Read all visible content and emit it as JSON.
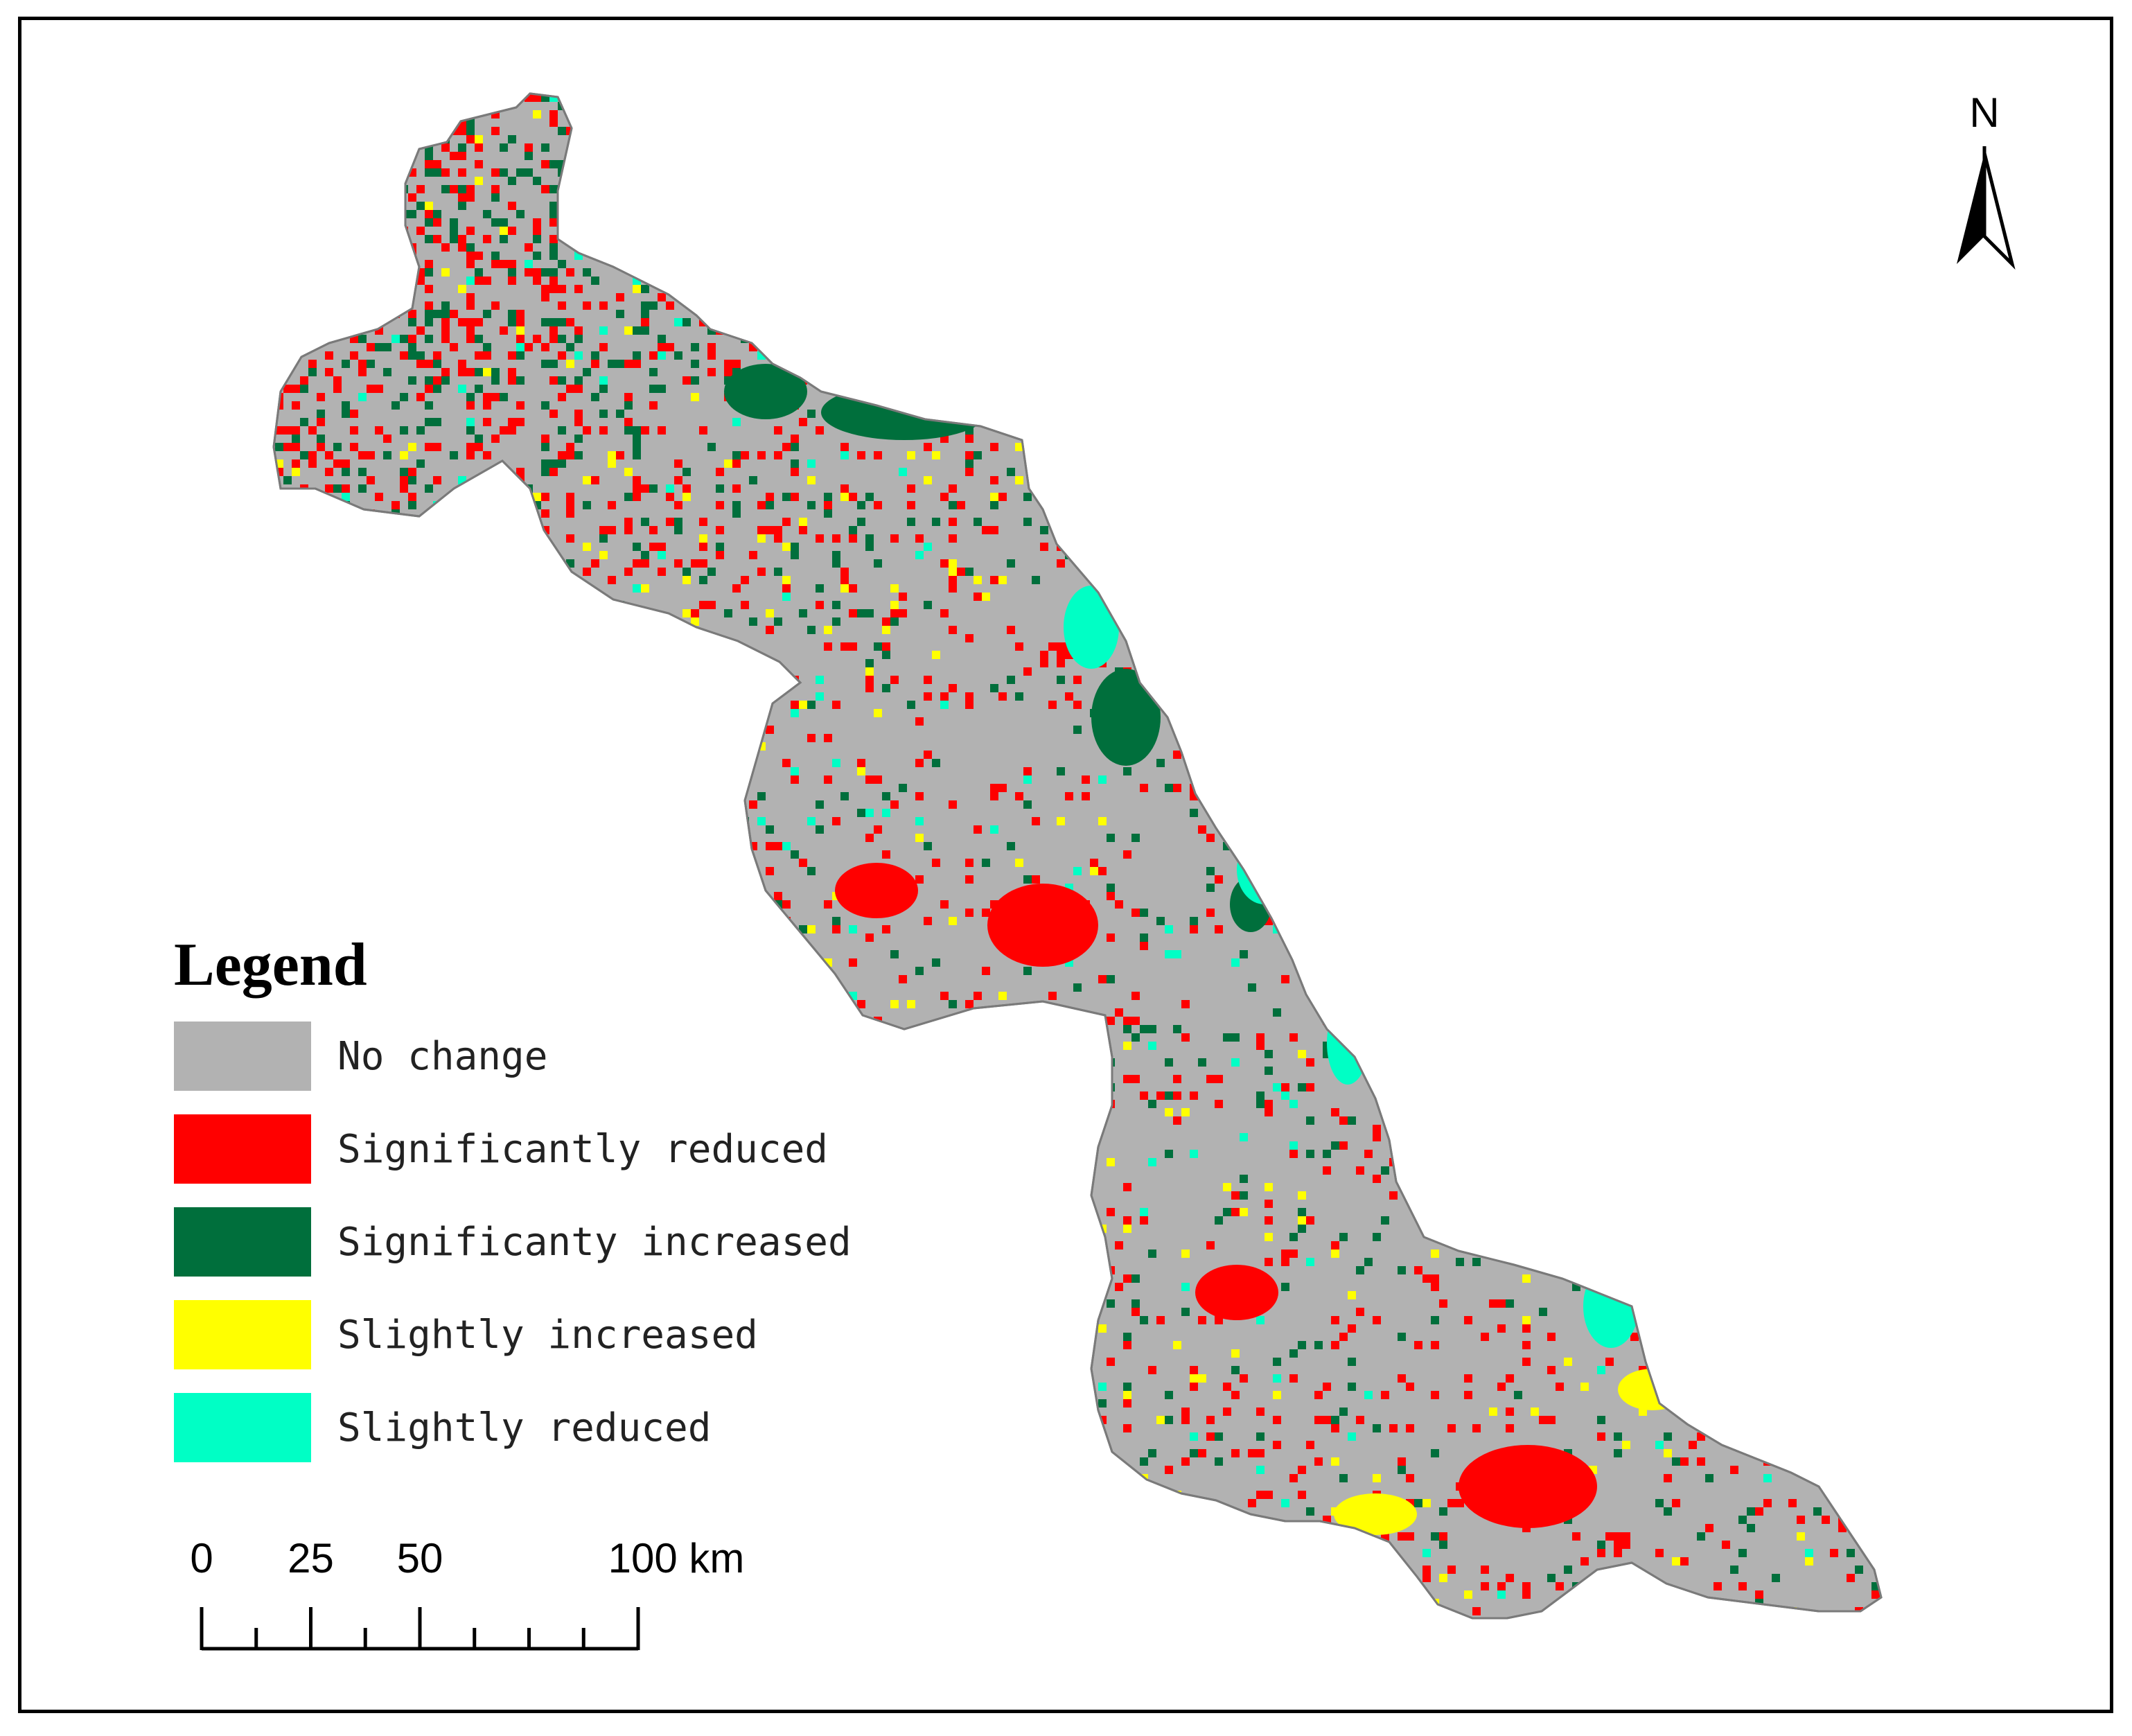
{
  "map": {
    "legend_title": "Legend",
    "north_label": "N",
    "legend": [
      {
        "key": "no_change",
        "label": "No change",
        "color": "#b2b2b2"
      },
      {
        "key": "sig_reduced",
        "label": "Significantly reduced",
        "color": "#ff0000"
      },
      {
        "key": "sig_increased",
        "label": "Significanty increased",
        "color": "#006f3c"
      },
      {
        "key": "slight_increased",
        "label": "Slightly increased",
        "color": "#ffff00"
      },
      {
        "key": "slight_reduced",
        "label": "Slightly reduced",
        "color": "#00ffc5"
      }
    ],
    "scalebar": {
      "labels": [
        "0",
        "25",
        "50",
        "100 km"
      ],
      "values": [
        0,
        25,
        50,
        100
      ],
      "max_km": 100
    }
  }
}
